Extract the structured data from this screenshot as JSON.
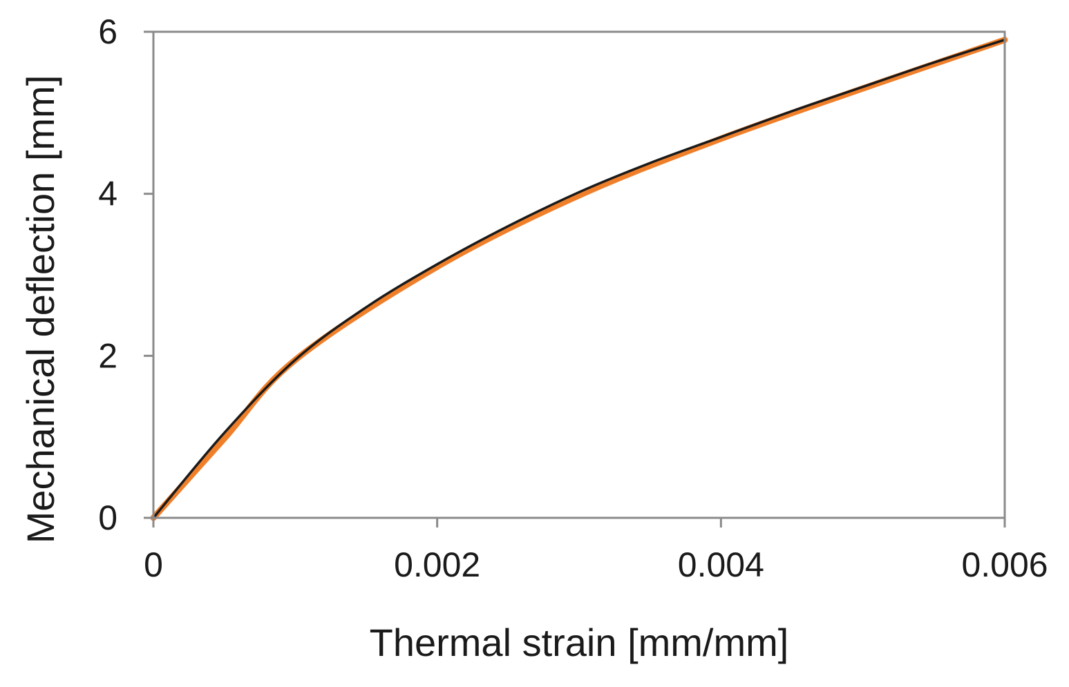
{
  "chart_data": {
    "type": "line",
    "title": "",
    "xlabel": "Thermal strain [mm/mm]",
    "ylabel": "Mechanical deflection [mm]",
    "xlim": [
      0,
      0.006
    ],
    "ylim": [
      0,
      6
    ],
    "x_ticks": [
      0,
      0.002,
      0.004,
      0.006
    ],
    "x_tick_labels": [
      "0",
      "0.002",
      "0.004",
      "0.006"
    ],
    "y_ticks": [
      0,
      2,
      4,
      6
    ],
    "y_tick_labels": [
      "0",
      "2",
      "4",
      "6"
    ],
    "grid": false,
    "legend": "none",
    "series": [
      {
        "color": "#f07f2a",
        "x": [
          0,
          0.0005,
          0.001,
          0.002,
          0.003,
          0.004,
          0.005,
          0.006
        ],
        "y": [
          0,
          0.98,
          1.95,
          3.1,
          3.98,
          4.68,
          5.3,
          5.9
        ]
      },
      {
        "color": "#1a1a1a",
        "x": [
          0,
          0.0005,
          0.001,
          0.0015,
          0.002,
          0.0025,
          0.003,
          0.0035,
          0.004,
          0.0045,
          0.005,
          0.0055,
          0.006
        ],
        "y": [
          0,
          1.05,
          1.95,
          2.6,
          3.13,
          3.6,
          4.02,
          4.38,
          4.7,
          5.02,
          5.32,
          5.62,
          5.9
        ]
      }
    ]
  }
}
